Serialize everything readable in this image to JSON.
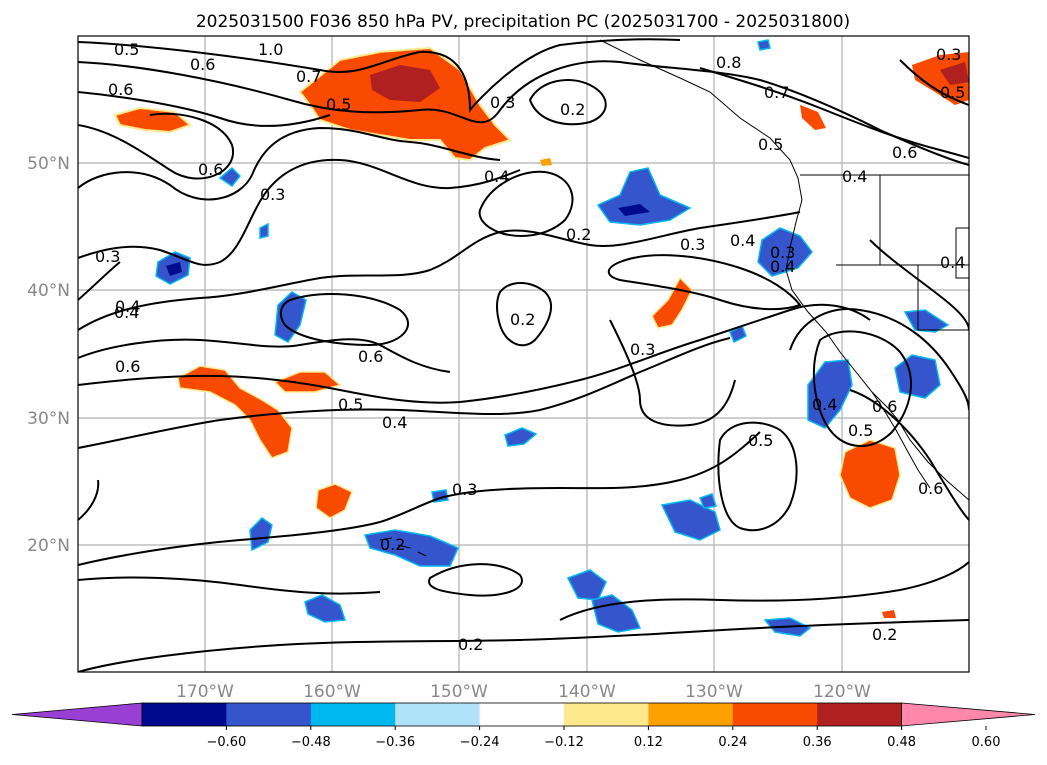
{
  "title": "2025031500 F036 850 hPa PV, precipitation PC (2025031700 - 2025031800)",
  "lat_labels": [
    "50°N",
    "40°N",
    "30°N",
    "20°N"
  ],
  "lon_labels": [
    "170°W",
    "160°W",
    "150°W",
    "140°W",
    "130°W",
    "120°W"
  ],
  "colorbar": {
    "tick_labels": [
      "−0.60",
      "−0.48",
      "−0.36",
      "−0.24",
      "−0.12",
      "0.12",
      "0.24",
      "0.36",
      "0.48",
      "0.60"
    ],
    "colors": [
      "#9a3fd4",
      "#000a8c",
      "#3455cc",
      "#00b8f0",
      "#b0e2fa",
      "#ffffff",
      "#fde88c",
      "#fda100",
      "#f84a00",
      "#b02020",
      "#ff88aa"
    ]
  },
  "contour_labels": [
    "1.0",
    "0.5",
    "0.6",
    "0.6",
    "0.7",
    "0.5",
    "0.3",
    "0.2",
    "0.8",
    "0.7",
    "0.5",
    "0.6",
    "0.4",
    "0.6",
    "0.3",
    "0.4",
    "0.2",
    "0.3",
    "0.4",
    "0.2",
    "0.4",
    "0.4",
    "0.6",
    "0.3",
    "0.5",
    "0.4",
    "0.6",
    "0.3",
    "0.2",
    "0.2",
    "0.4",
    "0.5",
    "0.6",
    "0.6",
    "0.5",
    "0.4",
    "0.3",
    "0.2",
    "0.5",
    "0.4",
    "0.3",
    "0.3"
  ]
}
